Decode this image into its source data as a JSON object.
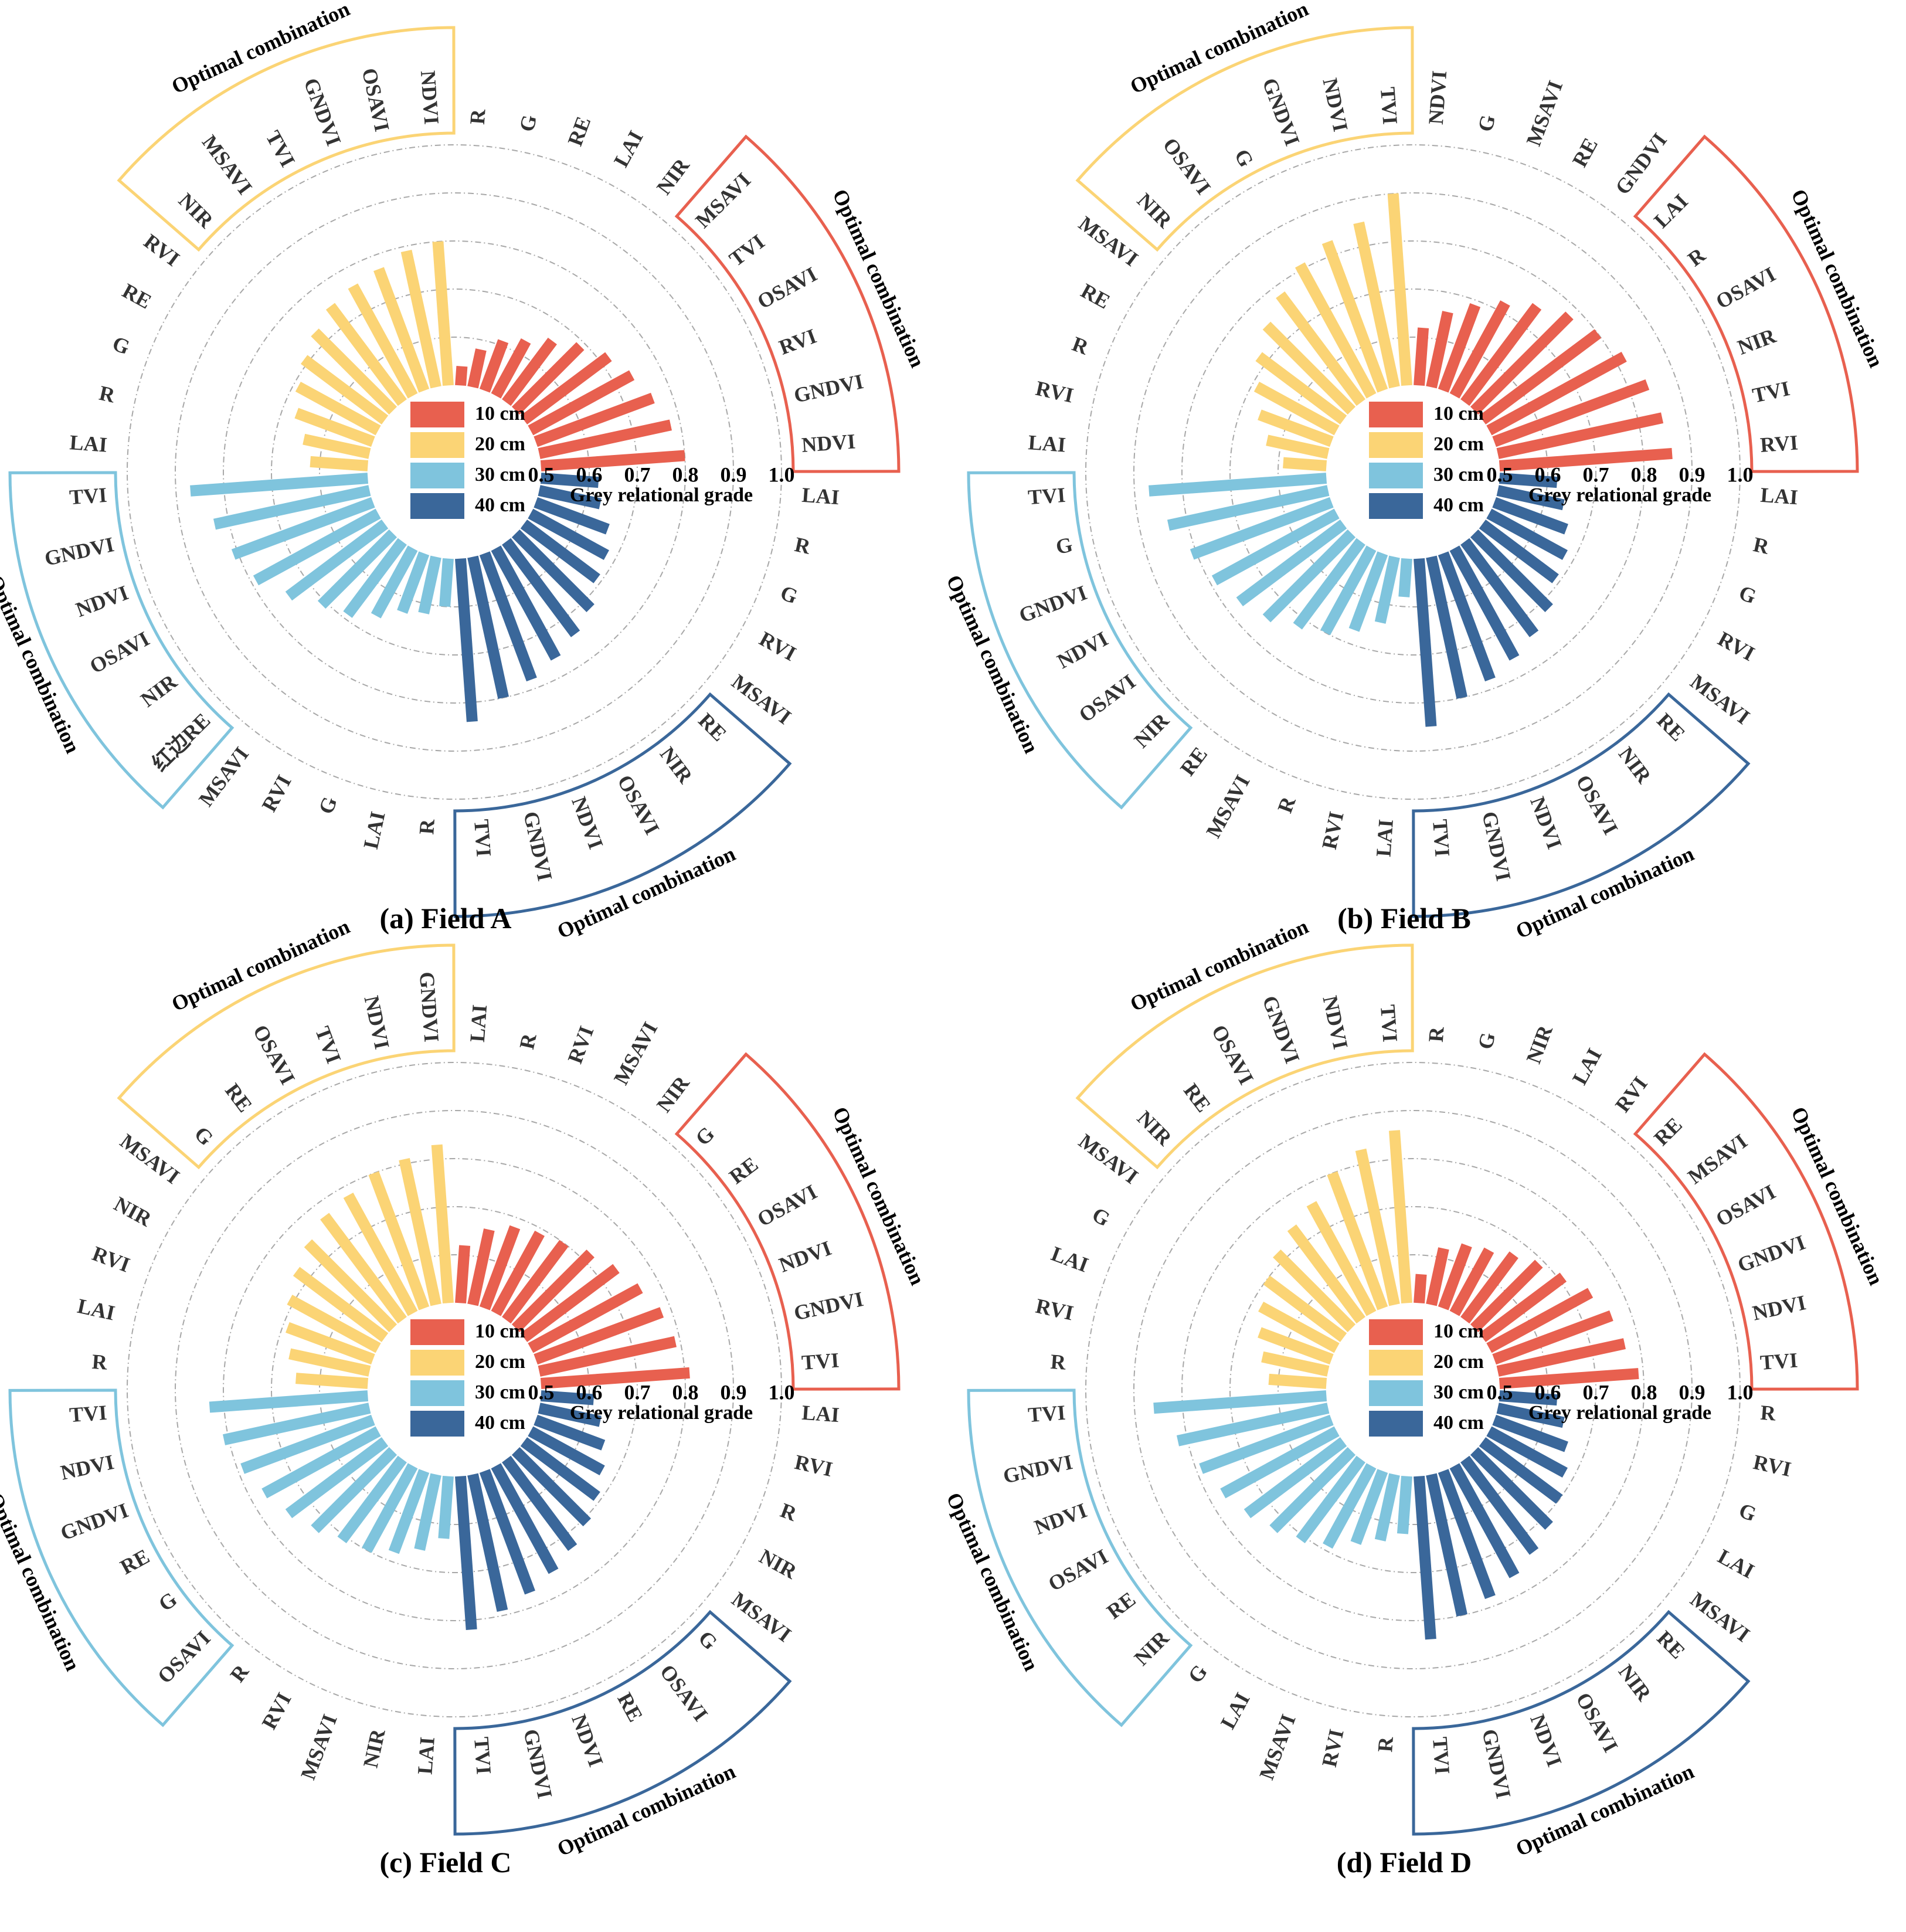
{
  "axis": {
    "title": "Grey relational grade",
    "ticks": [
      "0.5",
      "0.6",
      "0.7",
      "0.8",
      "0.9",
      "1.0"
    ],
    "range": [
      0.5,
      1.0
    ]
  },
  "legend": [
    {
      "label": "10 cm",
      "color": "#e8604f"
    },
    {
      "label": "20 cm",
      "color": "#fbd475"
    },
    {
      "label": "30 cm",
      "color": "#7fc4dd"
    },
    {
      "label": "40 cm",
      "color": "#3a679a"
    }
  ],
  "chart_data": [
    {
      "type": "bar",
      "subtype": "radial",
      "title": "(a) Field A",
      "xlabel": "Grey relational grade",
      "ylim": [
        0.5,
        1.0
      ],
      "series": [
        {
          "name": "10 cm",
          "color": "#e8604f",
          "categories": [
            "R",
            "G",
            "RE",
            "LAI",
            "NIR",
            "MSAVI",
            "TVI",
            "OSAVI",
            "RVI",
            "GNDVI",
            "NDVI"
          ],
          "values": [
            0.54,
            0.58,
            0.61,
            0.63,
            0.66,
            0.69,
            0.72,
            0.74,
            0.76,
            0.78,
            0.8
          ],
          "optimal_combination": [
            "MSAVI",
            "TVI",
            "OSAVI",
            "RVI",
            "GNDVI",
            "NDVI"
          ],
          "optimal_title": "Optimal combination"
        },
        {
          "name": "20 cm",
          "color": "#fbd475",
          "categories": [
            "LAI",
            "R",
            "G",
            "RE",
            "RVI",
            "NIR",
            "MSAVI",
            "TVI",
            "GNDVI",
            "OSAVI",
            "NDVI"
          ],
          "values": [
            0.62,
            0.64,
            0.67,
            0.69,
            0.71,
            0.73,
            0.75,
            0.76,
            0.77,
            0.79,
            0.8
          ],
          "optimal_combination": [
            "NIR",
            "MSAVI",
            "TVI",
            "GNDVI",
            "OSAVI",
            "NDVI"
          ],
          "optimal_title": "Optimal combination"
        },
        {
          "name": "30 cm",
          "color": "#7fc4dd",
          "categories": [
            "TVI",
            "GNDVI",
            "NDVI",
            "OSAVI",
            "NIR",
            "红边RE",
            "MSAVI",
            "RVI",
            "G",
            "LAI",
            "R"
          ],
          "values": [
            0.87,
            0.83,
            0.81,
            0.79,
            0.75,
            0.71,
            0.69,
            0.66,
            0.63,
            0.62,
            0.6
          ],
          "optimal_combination": [
            "TVI",
            "GNDVI",
            "NDVI",
            "OSAVI",
            "NIR",
            "红边RE"
          ],
          "optimal_title": "Optimal combination"
        },
        {
          "name": "40 cm",
          "color": "#3a679a",
          "categories": [
            "LAI",
            "R",
            "G",
            "RVI",
            "MSAVI",
            "RE",
            "NIR",
            "OSAVI",
            "NDVI",
            "GNDVI",
            "TVI"
          ],
          "values": [
            0.62,
            0.63,
            0.66,
            0.68,
            0.69,
            0.72,
            0.74,
            0.76,
            0.78,
            0.8,
            0.84
          ],
          "optimal_combination": [
            "RE",
            "NIR",
            "OSAVI",
            "NDVI",
            "GNDVI",
            "TVI"
          ],
          "optimal_title": "Optimal combination"
        }
      ]
    },
    {
      "type": "bar",
      "subtype": "radial",
      "title": "(b) Field B",
      "xlabel": "Grey relational grade",
      "ylim": [
        0.5,
        1.0
      ],
      "series": [
        {
          "name": "10 cm",
          "color": "#e8604f",
          "categories": [
            "NDVI",
            "G",
            "MSAVI",
            "RE",
            "GNDVI",
            "LAI",
            "R",
            "OSAVI",
            "NIR",
            "TVI",
            "RVI"
          ],
          "values": [
            0.62,
            0.66,
            0.69,
            0.72,
            0.75,
            0.78,
            0.8,
            0.82,
            0.84,
            0.85,
            0.86
          ],
          "optimal_combination": [
            "LAI",
            "R",
            "OSAVI",
            "NIR",
            "TVI",
            "RVI"
          ],
          "optimal_title": "Optimal combination"
        },
        {
          "name": "20 cm",
          "color": "#fbd475",
          "categories": [
            "LAI",
            "RVI",
            "R",
            "RE",
            "MSAVI",
            "NIR",
            "OSAVI",
            "G",
            "GNDVI",
            "NDVI",
            "TVI"
          ],
          "values": [
            0.59,
            0.63,
            0.66,
            0.69,
            0.72,
            0.75,
            0.78,
            0.81,
            0.83,
            0.85,
            0.9
          ],
          "optimal_combination": [
            "NIR",
            "OSAVI",
            "G",
            "GNDVI",
            "NDVI",
            "TVI"
          ],
          "optimal_title": "Optimal combination"
        },
        {
          "name": "30 cm",
          "color": "#7fc4dd",
          "categories": [
            "TVI",
            "G",
            "GNDVI",
            "NDVI",
            "OSAVI",
            "NIR",
            "RE",
            "MSAVI",
            "R",
            "RVI",
            "LAI"
          ],
          "values": [
            0.87,
            0.84,
            0.81,
            0.79,
            0.77,
            0.75,
            0.72,
            0.7,
            0.67,
            0.64,
            0.58
          ],
          "optimal_combination": [
            "TVI",
            "G",
            "GNDVI",
            "NDVI",
            "OSAVI",
            "NIR"
          ],
          "optimal_title": "Optimal combination"
        },
        {
          "name": "40 cm",
          "color": "#3a679a",
          "categories": [
            "LAI",
            "R",
            "G",
            "RVI",
            "MSAVI",
            "RE",
            "NIR",
            "OSAVI",
            "NDVI",
            "GNDVI",
            "TVI"
          ],
          "values": [
            0.62,
            0.64,
            0.66,
            0.68,
            0.69,
            0.72,
            0.74,
            0.76,
            0.78,
            0.8,
            0.85
          ],
          "optimal_combination": [
            "RE",
            "NIR",
            "OSAVI",
            "NDVI",
            "GNDVI",
            "TVI"
          ],
          "optimal_title": "Optimal combination"
        }
      ]
    },
    {
      "type": "bar",
      "subtype": "radial",
      "title": "(c) Field C",
      "xlabel": "Grey relational grade",
      "ylim": [
        0.5,
        1.0
      ],
      "series": [
        {
          "name": "10 cm",
          "color": "#e8604f",
          "categories": [
            "LAI",
            "R",
            "RVI",
            "MSAVI",
            "NIR",
            "G",
            "RE",
            "OSAVI",
            "NDVI",
            "GNDVI",
            "TVI"
          ],
          "values": [
            0.62,
            0.66,
            0.68,
            0.69,
            0.7,
            0.72,
            0.74,
            0.76,
            0.78,
            0.79,
            0.81
          ],
          "optimal_combination": [
            "G",
            "RE",
            "OSAVI",
            "NDVI",
            "GNDVI",
            "TVI"
          ],
          "optimal_title": "Optimal combination"
        },
        {
          "name": "20 cm",
          "color": "#fbd475",
          "categories": [
            "R",
            "LAI",
            "RVI",
            "NIR",
            "MSAVI",
            "G",
            "RE",
            "OSAVI",
            "TVI",
            "NDVI",
            "GNDVI"
          ],
          "values": [
            0.65,
            0.67,
            0.69,
            0.71,
            0.73,
            0.75,
            0.77,
            0.78,
            0.8,
            0.81,
            0.83
          ],
          "optimal_combination": [
            "G",
            "RE",
            "OSAVI",
            "TVI",
            "NDVI",
            "GNDVI"
          ],
          "optimal_title": "Optimal combination"
        },
        {
          "name": "30 cm",
          "color": "#7fc4dd",
          "categories": [
            "TVI",
            "NDVI",
            "GNDVI",
            "RE",
            "G",
            "OSAVI",
            "R",
            "RVI",
            "MSAVI",
            "NIR",
            "LAI"
          ],
          "values": [
            0.83,
            0.81,
            0.79,
            0.77,
            0.75,
            0.73,
            0.71,
            0.7,
            0.68,
            0.66,
            0.63
          ],
          "optimal_combination": [
            "TVI",
            "NDVI",
            "GNDVI",
            "RE",
            "G",
            "OSAVI"
          ],
          "optimal_title": "Optimal combination"
        },
        {
          "name": "40 cm",
          "color": "#3a679a",
          "categories": [
            "LAI",
            "RVI",
            "R",
            "NIR",
            "MSAVI",
            "G",
            "OSAVI",
            "RE",
            "NDVI",
            "GNDVI",
            "TVI"
          ],
          "values": [
            0.61,
            0.63,
            0.65,
            0.67,
            0.69,
            0.71,
            0.73,
            0.75,
            0.77,
            0.79,
            0.82
          ],
          "optimal_combination": [
            "G",
            "OSAVI",
            "RE",
            "NDVI",
            "GNDVI",
            "TVI"
          ],
          "optimal_title": "Optimal combination"
        }
      ]
    },
    {
      "type": "bar",
      "subtype": "radial",
      "title": "(d) Field D",
      "xlabel": "Grey relational grade",
      "ylim": [
        0.5,
        1.0
      ],
      "series": [
        {
          "name": "10 cm",
          "color": "#e8604f",
          "categories": [
            "R",
            "G",
            "NIR",
            "LAI",
            "RVI",
            "RE",
            "MSAVI",
            "OSAVI",
            "GNDVI",
            "NDVI",
            "TVI"
          ],
          "values": [
            0.56,
            0.62,
            0.64,
            0.65,
            0.67,
            0.69,
            0.71,
            0.74,
            0.76,
            0.77,
            0.79
          ],
          "optimal_combination": [
            "RE",
            "MSAVI",
            "OSAVI",
            "GNDVI",
            "NDVI",
            "TVI"
          ],
          "optimal_title": "Optimal combination"
        },
        {
          "name": "20 cm",
          "color": "#fbd475",
          "categories": [
            "R",
            "RVI",
            "LAI",
            "G",
            "MSAVI",
            "NIR",
            "RE",
            "OSAVI",
            "GNDVI",
            "NDVI",
            "TVI"
          ],
          "values": [
            0.62,
            0.64,
            0.66,
            0.68,
            0.7,
            0.72,
            0.74,
            0.76,
            0.8,
            0.83,
            0.86
          ],
          "optimal_combination": [
            "NIR",
            "RE",
            "OSAVI",
            "GNDVI",
            "NDVI",
            "TVI"
          ],
          "optimal_title": "Optimal combination"
        },
        {
          "name": "30 cm",
          "color": "#7fc4dd",
          "categories": [
            "TVI",
            "GNDVI",
            "NDVI",
            "OSAVI",
            "RE",
            "NIR",
            "G",
            "LAI",
            "MSAVI",
            "RVI",
            "R"
          ],
          "values": [
            0.86,
            0.82,
            0.79,
            0.77,
            0.75,
            0.73,
            0.71,
            0.69,
            0.66,
            0.64,
            0.62
          ],
          "optimal_combination": [
            "TVI",
            "GNDVI",
            "NDVI",
            "OSAVI",
            "RE",
            "NIR"
          ],
          "optimal_title": "Optimal combination"
        },
        {
          "name": "40 cm",
          "color": "#3a679a",
          "categories": [
            "R",
            "RVI",
            "G",
            "LAI",
            "MSAVI",
            "RE",
            "NIR",
            "OSAVI",
            "NDVI",
            "GNDVI",
            "TVI"
          ],
          "values": [
            0.62,
            0.64,
            0.66,
            0.68,
            0.7,
            0.72,
            0.74,
            0.76,
            0.78,
            0.8,
            0.84
          ],
          "optimal_combination": [
            "RE",
            "NIR",
            "OSAVI",
            "NDVI",
            "GNDVI",
            "TVI"
          ],
          "optimal_title": "Optimal combination"
        }
      ]
    }
  ]
}
